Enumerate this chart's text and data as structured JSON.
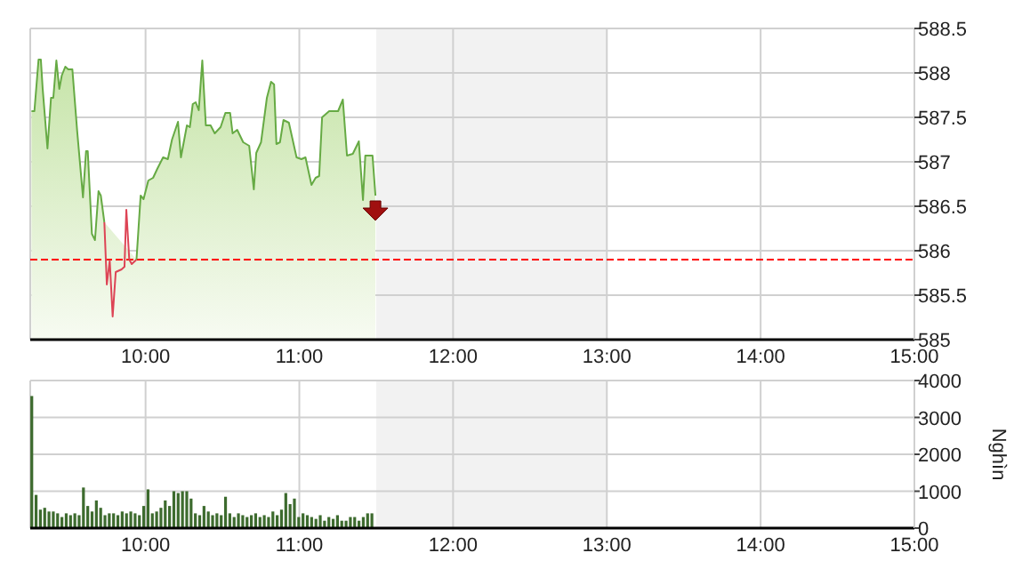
{
  "chart_data": [
    {
      "type": "area",
      "xlim": [
        9.25,
        15
      ],
      "ylim": [
        585,
        588.5
      ],
      "xticks": [
        {
          "value": 10,
          "label": "10:00"
        },
        {
          "value": 11,
          "label": "11:00"
        },
        {
          "value": 12,
          "label": "12:00"
        },
        {
          "value": 13,
          "label": "13:00"
        },
        {
          "value": 14,
          "label": "14:00"
        },
        {
          "value": 15,
          "label": "15:00"
        }
      ],
      "yticks": [
        585,
        585.5,
        586,
        586.5,
        587,
        587.5,
        588,
        588.5
      ],
      "grid": true,
      "x": [
        9.258,
        9.277,
        9.304,
        9.319,
        9.331,
        9.362,
        9.385,
        9.4,
        9.42,
        9.439,
        9.455,
        9.478,
        9.497,
        9.524,
        9.555,
        9.593,
        9.613,
        9.624,
        9.651,
        9.671,
        9.694,
        9.709,
        9.732,
        9.748,
        9.767,
        9.786,
        9.806,
        9.844,
        9.863,
        9.875,
        9.894,
        9.91,
        9.941,
        9.968,
        9.987,
        10.018,
        10.049,
        10.076,
        10.114,
        10.145,
        10.172,
        10.211,
        10.23,
        10.269,
        10.288,
        10.307,
        10.326,
        10.346,
        10.369,
        10.392,
        10.423,
        10.45,
        10.488,
        10.519,
        10.55,
        10.566,
        10.596,
        10.635,
        10.674,
        10.704,
        10.72,
        10.751,
        10.789,
        10.816,
        10.836,
        10.851,
        10.874,
        10.897,
        10.932,
        10.982,
        11.013,
        11.04,
        11.079,
        11.106,
        11.129,
        11.148,
        11.194,
        11.252,
        11.283,
        11.31,
        11.348,
        11.387,
        11.414,
        11.429,
        11.476,
        11.495
      ],
      "series": [
        {
          "color": "#66aa44",
          "values": [
            587.57,
            587.57,
            588.15,
            588.15,
            587.82,
            587.15,
            587.72,
            587.72,
            588.14,
            587.82,
            587.97,
            588.07,
            588.04,
            588.04,
            587.35,
            586.6,
            587.12,
            587.12,
            586.19,
            586.12,
            586.67,
            586.62,
            586.32,
            null,
            null,
            null,
            null,
            null,
            null,
            null,
            null,
            null,
            585.9,
            586.62,
            586.58,
            586.79,
            586.82,
            586.92,
            587.05,
            587.03,
            587.25,
            587.45,
            587.05,
            587.41,
            587.39,
            587.65,
            587.67,
            587.58,
            588.14,
            587.41,
            587.41,
            587.32,
            587.39,
            587.55,
            587.55,
            587.32,
            587.36,
            587.22,
            587.18,
            586.69,
            587.1,
            587.22,
            587.72,
            587.9,
            587.87,
            587.2,
            587.22,
            587.47,
            587.44,
            587.05,
            587.03,
            587.05,
            586.74,
            586.82,
            586.84,
            587.5,
            587.57,
            587.57,
            587.7,
            587.07,
            587.09,
            587.23,
            586.57,
            587.07,
            587.07,
            586.62
          ]
        },
        {
          "type": "line",
          "color": "#dd4455",
          "x": [
            9.732,
            9.748,
            9.767,
            9.786,
            9.806,
            9.844,
            9.863,
            9.875,
            9.894,
            9.91,
            9.941
          ],
          "values": [
            586.32,
            585.62,
            585.89,
            585.26,
            585.76,
            585.79,
            585.82,
            586.46,
            585.9,
            585.85,
            585.9
          ]
        }
      ],
      "ref_lines": [
        {
          "axis": "y",
          "value": 585.9,
          "color": "#ff0000",
          "line_style": "dashed"
        }
      ],
      "bands": [
        {
          "axis": "x",
          "from": 11.5,
          "to": 13,
          "color": "#f2f2f2"
        }
      ]
    },
    {
      "type": "bar",
      "xlim": [
        9.25,
        15
      ],
      "ylim": [
        0,
        4000
      ],
      "ylabel": "Nghìn",
      "xticks": [
        {
          "value": 10,
          "label": "10:00"
        },
        {
          "value": 11,
          "label": "11:00"
        },
        {
          "value": 12,
          "label": "12:00"
        },
        {
          "value": 13,
          "label": "13:00"
        },
        {
          "value": 14,
          "label": "14:00"
        },
        {
          "value": 15,
          "label": "15:00"
        }
      ],
      "yticks": [
        0,
        1000,
        2000,
        3000,
        4000
      ],
      "grid": true,
      "color": "#3d6b2e",
      "x": [
        9.26,
        9.288,
        9.316,
        9.344,
        9.372,
        9.4,
        9.428,
        9.456,
        9.484,
        9.512,
        9.54,
        9.568,
        9.596,
        9.624,
        9.652,
        9.68,
        9.708,
        9.736,
        9.764,
        9.792,
        9.82,
        9.848,
        9.876,
        9.904,
        9.932,
        9.96,
        9.988,
        10.016,
        10.044,
        10.072,
        10.1,
        10.128,
        10.156,
        10.184,
        10.212,
        10.24,
        10.268,
        10.296,
        10.324,
        10.352,
        10.38,
        10.408,
        10.436,
        10.464,
        10.492,
        10.52,
        10.548,
        10.576,
        10.604,
        10.632,
        10.66,
        10.688,
        10.716,
        10.744,
        10.772,
        10.8,
        10.828,
        10.856,
        10.884,
        10.912,
        10.94,
        10.968,
        10.996,
        11.024,
        11.052,
        11.08,
        11.108,
        11.136,
        11.164,
        11.192,
        11.22,
        11.248,
        11.276,
        11.304,
        11.332,
        11.36,
        11.388,
        11.416,
        11.444,
        11.472
      ],
      "values": [
        3580,
        900,
        500,
        550,
        450,
        450,
        400,
        300,
        400,
        350,
        400,
        350,
        1100,
        600,
        450,
        750,
        550,
        350,
        400,
        400,
        350,
        450,
        400,
        450,
        400,
        350,
        600,
        1050,
        400,
        450,
        550,
        750,
        600,
        1000,
        950,
        1000,
        1000,
        800,
        400,
        350,
        600,
        450,
        350,
        400,
        350,
        850,
        400,
        300,
        400,
        350,
        300,
        350,
        400,
        300,
        350,
        300,
        450,
        350,
        500,
        950,
        650,
        800,
        300,
        400,
        350,
        300,
        250,
        350,
        200,
        300,
        250,
        350,
        200,
        200,
        300,
        300,
        200,
        300,
        400,
        400
      ],
      "bands": [
        {
          "axis": "x",
          "from": 11.5,
          "to": 13,
          "color": "#f2f2f2"
        }
      ]
    }
  ]
}
